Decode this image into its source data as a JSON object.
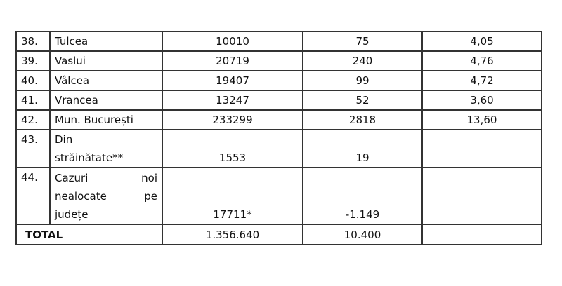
{
  "rows": [
    {
      "nr": "38.",
      "name": "Tulcea",
      "cases": "10010",
      "new": "75",
      "rate": "4,05"
    },
    {
      "nr": "39.",
      "name": "Vaslui",
      "cases": "20719",
      "new": "240",
      "rate": "4,76"
    },
    {
      "nr": "40.",
      "name": "Vâlcea",
      "cases": "19407",
      "new": "99",
      "rate": "4,72"
    },
    {
      "nr": "41.",
      "name": "Vrancea",
      "cases": "13247",
      "new": "52",
      "rate": "3,60"
    },
    {
      "nr": "42.",
      "name": "Mun. București",
      "cases": "233299",
      "new": "2818",
      "rate": "13,60"
    },
    {
      "nr": "43.",
      "name_line1": "Din",
      "name_line2": "străinătate**",
      "cases": "1553",
      "new": "19",
      "rate": ""
    },
    {
      "nr": "44.",
      "name_l1a": "Cazuri",
      "name_l1b": "noi",
      "name_l2a": "nealocate",
      "name_l2b": "pe",
      "name_l3": "județe",
      "cases": "17711*",
      "new": "-1.149",
      "rate": ""
    }
  ],
  "total": {
    "label": "TOTAL",
    "cases": "1.356.640",
    "new": "10.400",
    "rate": ""
  }
}
